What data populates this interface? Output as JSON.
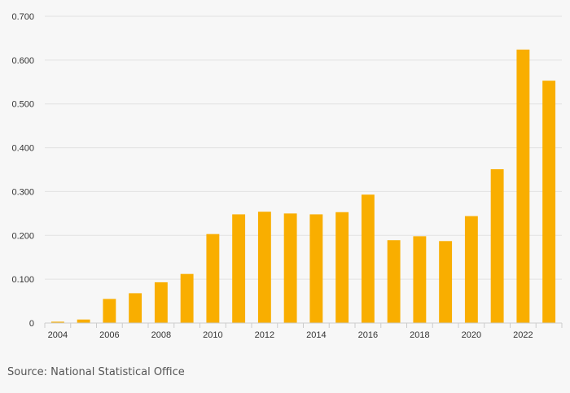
{
  "chart_data": {
    "type": "bar",
    "title": "",
    "xlabel": "",
    "ylabel": "",
    "x": [
      2004,
      2005,
      2006,
      2007,
      2008,
      2009,
      2010,
      2011,
      2012,
      2013,
      2014,
      2015,
      2016,
      2017,
      2018,
      2019,
      2020,
      2021,
      2022,
      2023
    ],
    "values": [
      0.003,
      0.008,
      0.055,
      0.068,
      0.093,
      0.112,
      0.203,
      0.248,
      0.254,
      0.25,
      0.248,
      0.253,
      0.293,
      0.189,
      0.198,
      0.187,
      0.244,
      0.351,
      0.624,
      0.553
    ],
    "x_tick_labels": [
      "2004",
      "2006",
      "2008",
      "2010",
      "2012",
      "2014",
      "2016",
      "2018",
      "2020",
      "2022"
    ],
    "y_tick_values": [
      0,
      0.1,
      0.2,
      0.3,
      0.4,
      0.5,
      0.6,
      0.7
    ],
    "y_tick_labels": [
      "0",
      "0.100",
      "0.200",
      "0.300",
      "0.400",
      "0.500",
      "0.600",
      "0.700"
    ],
    "ylim": [
      0,
      0.7
    ],
    "grid": true,
    "legend": "none",
    "colors": {
      "bar": "#f9ae00",
      "grid": "#e2e2e2",
      "axis": "#cccccc",
      "background": "#f7f7f7"
    }
  },
  "source": {
    "text": "Source: National Statistical Office"
  }
}
